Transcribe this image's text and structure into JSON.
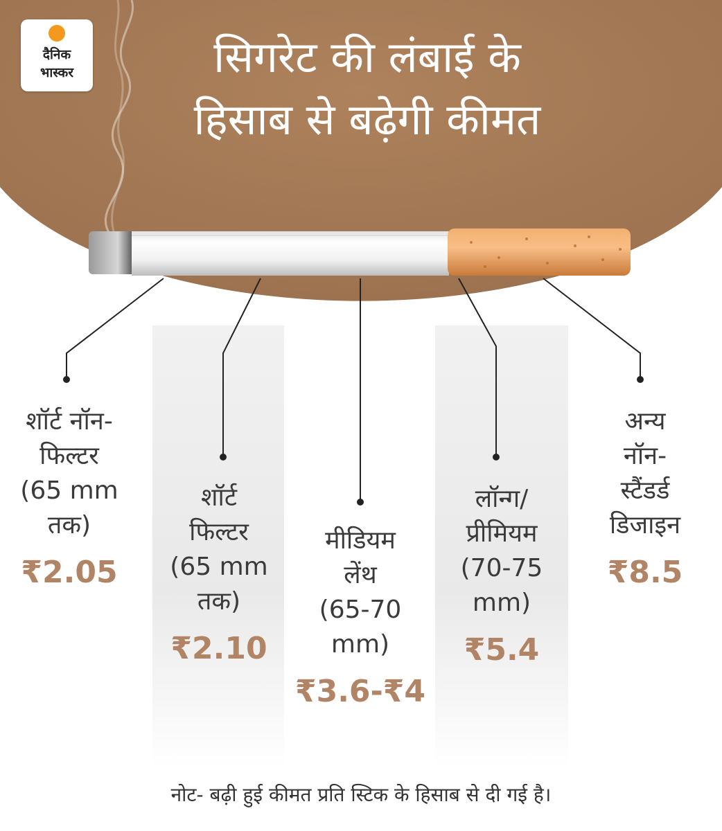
{
  "logo": {
    "line1": "दैनिक",
    "line2": "भास्कर",
    "colors": {
      "sun": "#f39a1e",
      "text": "#222222"
    }
  },
  "title": {
    "line1": "सिगरेट की लंबाई के",
    "line2": "हिसाब से बढ़ेगी कीमत"
  },
  "colors": {
    "brown_background": "#a47a55",
    "price_text": "#b08464",
    "filter": "#e49a52",
    "paper": "#f4f4f4"
  },
  "categories": [
    {
      "label": [
        "शॉर्ट नॉन-",
        "फिल्टर",
        "(65 mm",
        "तक)"
      ],
      "price": "₹2.05"
    },
    {
      "label": [
        "शॉर्ट",
        "फिल्टर",
        "(65 mm",
        "तक)"
      ],
      "price": "₹2.10"
    },
    {
      "label": [
        "मीडियम",
        "लेंथ",
        "(65-70",
        "mm)"
      ],
      "price": "₹3.6-₹4"
    },
    {
      "label": [
        "लॉन्ग/",
        "प्रीमियम",
        "(70-75",
        "mm)"
      ],
      "price": "₹5.4"
    },
    {
      "label": [
        "अन्य",
        "नॉन-",
        "स्टैंडर्ड",
        "डिजाइन"
      ],
      "price": "₹8.5"
    }
  ],
  "note": "नोट- बढ़ी हुई कीमत प्रति स्टिक के हिसाब से दी गई है।"
}
